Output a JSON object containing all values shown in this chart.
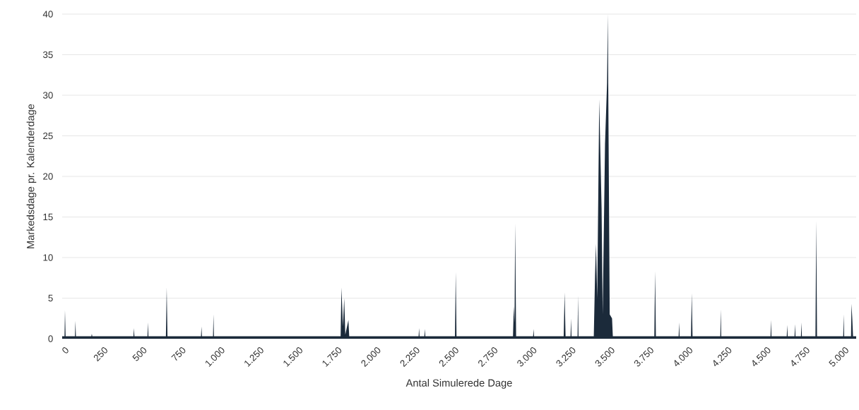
{
  "chart_data": {
    "type": "area",
    "xlabel": "Antal Simulerede Dage",
    "ylabel": "Markedsdage pr. Kalenderdage",
    "x": [
      0,
      15,
      18,
      22,
      82,
      85,
      88,
      187,
      190,
      193,
      457,
      460,
      463,
      547,
      550,
      553,
      665,
      670,
      675,
      890,
      893,
      896,
      967,
      970,
      973,
      1785,
      1790,
      1800,
      1808,
      1815,
      1835,
      1840,
      2285,
      2288,
      2291,
      2322,
      2325,
      2328,
      2518,
      2523,
      2528,
      2890,
      2895,
      2900,
      2904,
      2910,
      3019,
      3022,
      3025,
      3215,
      3221,
      3227,
      3259,
      3262,
      3265,
      3304,
      3307,
      3310,
      3408,
      3416,
      3422,
      3430,
      3443,
      3450,
      3458,
      3465,
      3480,
      3493,
      3498,
      3503,
      3510,
      3525,
      3530,
      3796,
      3801,
      3806,
      3952,
      3955,
      3958,
      4031,
      4036,
      4041,
      4219,
      4222,
      4225,
      4541,
      4544,
      4547,
      4645,
      4648,
      4651,
      4695,
      4698,
      4701,
      4736,
      4739,
      4742,
      4829,
      4834,
      4839,
      5007,
      5010,
      5013,
      5057,
      5060,
      5065,
      5070,
      5090
    ],
    "values": [
      0.3,
      0.3,
      3.5,
      0.3,
      0.3,
      2.2,
      0.3,
      0.3,
      0.6,
      0.3,
      0.3,
      1.3,
      0.3,
      0.3,
      2,
      0.3,
      0.3,
      6.3,
      0.3,
      0.3,
      1.5,
      0.3,
      0.3,
      3,
      0.3,
      0.3,
      6.3,
      1.5,
      5,
      0.5,
      2.3,
      0.3,
      0.3,
      1.3,
      0.3,
      0.3,
      1.2,
      0.3,
      0.3,
      8.2,
      0.3,
      0.3,
      4,
      2,
      14.2,
      0.3,
      0.3,
      1.2,
      0.3,
      0.3,
      5.7,
      0.3,
      0.3,
      2.5,
      0.3,
      0.3,
      5.3,
      0.3,
      0.3,
      7.8,
      11.7,
      5,
      29.5,
      23,
      16,
      3,
      24,
      31.5,
      40,
      24,
      3,
      2.5,
      0.3,
      0.3,
      8.3,
      0.3,
      0.3,
      2,
      0.3,
      0.3,
      5.6,
      0.3,
      0.3,
      3.6,
      0.3,
      0.3,
      2.3,
      0.3,
      0.3,
      1.7,
      0.3,
      0.3,
      1.8,
      0.3,
      0.3,
      2,
      0.3,
      0.3,
      14.5,
      0.3,
      0.3,
      3,
      0.3,
      0.3,
      4.3,
      2.5,
      0.3,
      0.3
    ],
    "color": "#1b2a3a",
    "xlim": [
      0,
      5090
    ],
    "ylim": [
      0,
      40
    ],
    "xticks": [
      0,
      250,
      500,
      750,
      {
        "value": 1000,
        "label": "1.000"
      },
      {
        "value": 1250,
        "label": "1.250"
      },
      {
        "value": 1500,
        "label": "1.500"
      },
      {
        "value": 1750,
        "label": "1.750"
      },
      {
        "value": 2000,
        "label": "2.000"
      },
      {
        "value": 2250,
        "label": "2.250"
      },
      {
        "value": 2500,
        "label": "2.500"
      },
      {
        "value": 2750,
        "label": "2.750"
      },
      {
        "value": 3000,
        "label": "3.000"
      },
      {
        "value": 3250,
        "label": "3.250"
      },
      {
        "value": 3500,
        "label": "3.500"
      },
      {
        "value": 3750,
        "label": "3.750"
      },
      {
        "value": 4000,
        "label": "4.000"
      },
      {
        "value": 4250,
        "label": "4.250"
      },
      {
        "value": 4500,
        "label": "4.500"
      },
      {
        "value": 4750,
        "label": "4.750"
      },
      {
        "value": 5000,
        "label": "5.000"
      }
    ],
    "yticks": [
      0,
      5,
      10,
      15,
      20,
      25,
      30,
      35,
      40
    ],
    "grid": "y"
  }
}
